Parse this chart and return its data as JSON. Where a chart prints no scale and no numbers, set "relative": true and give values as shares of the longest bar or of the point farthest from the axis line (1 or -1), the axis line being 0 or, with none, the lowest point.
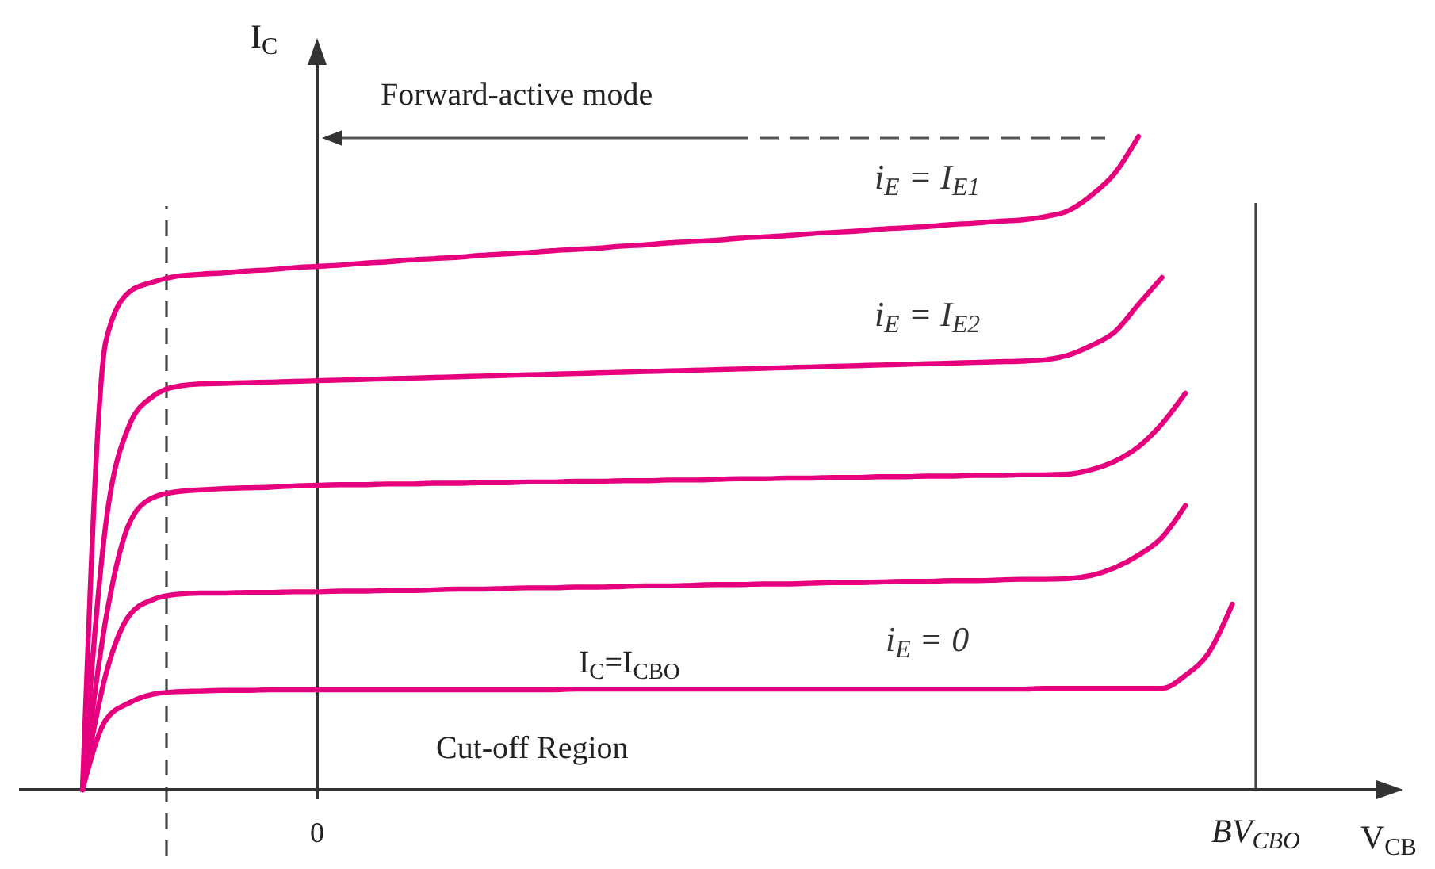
{
  "chart_data": {
    "type": "line",
    "relative": true,
    "xlabel": "V$_{CB}$",
    "ylabel": "I$_{C}$",
    "categories": [
      null,
      null,
      null,
      null,
      null,
      null,
      null,
      null,
      null,
      null,
      "0",
      null,
      null,
      null,
      null,
      null,
      null,
      null,
      null,
      null,
      null,
      null,
      null,
      null,
      null,
      null,
      null,
      null,
      null,
      null,
      null,
      null,
      null,
      null,
      null,
      null,
      null,
      null,
      null,
      null,
      null,
      null,
      null,
      null,
      null,
      null,
      null,
      null,
      null,
      null,
      "BV$_{CBO}$",
      null,
      null,
      null,
      null,
      null,
      null
    ],
    "legend": false,
    "grid": false,
    "marker": "none",
    "line_style": "solid",
    "ref_lines": [
      {
        "axis": "x",
        "value": "BV$_{CBO}$",
        "label": null,
        "line_style": "solid",
        "color": "#444444"
      }
    ],
    "annotations": [
      "Forward-active mode",
      "I$_{C}$=I$_{CBO}$",
      "Cut-off Region"
    ],
    "series": [
      {
        "name": "i$_{E}$ = I$_{E1}$",
        "color": "#e6007e",
        "values": [
          0,
          0.687,
          0.762,
          0.777,
          0.786,
          0.789,
          0.791,
          0.794,
          0.796,
          0.799,
          0.801,
          0.803,
          0.806,
          0.808,
          0.811,
          0.813,
          0.815,
          0.818,
          0.82,
          0.822,
          0.825,
          0.827,
          0.829,
          0.832,
          0.834,
          0.837,
          0.839,
          0.841,
          0.844,
          0.846,
          0.848,
          0.851,
          0.853,
          0.855,
          0.858,
          0.86,
          0.862,
          0.865,
          0.867,
          0.87,
          0.872,
          0.877,
          0.886,
          0.91,
          0.944,
          1,
          null,
          null,
          null,
          null,
          null,
          null,
          null,
          null,
          null,
          null,
          null
        ]
      },
      {
        "name": "i$_{E}$ = I$_{E2}$",
        "color": "#e6007e",
        "values": [
          0,
          0.408,
          0.558,
          0.602,
          0.617,
          0.621,
          0.622,
          0.623,
          0.624,
          0.625,
          0.626,
          0.627,
          0.628,
          0.629,
          0.63,
          0.631,
          0.632,
          0.633,
          0.634,
          0.635,
          0.636,
          0.637,
          0.638,
          0.639,
          0.64,
          0.641,
          0.642,
          0.643,
          0.644,
          0.645,
          0.646,
          0.647,
          0.648,
          0.649,
          0.65,
          0.651,
          0.652,
          0.653,
          0.654,
          0.655,
          0.656,
          0.658,
          0.665,
          0.68,
          0.701,
          0.743,
          0.784,
          null,
          null,
          null,
          null,
          null,
          null,
          null,
          null,
          null,
          null
        ]
      },
      {
        "color": "#e6007e",
        "values": [
          0,
          0.262,
          0.408,
          0.447,
          0.456,
          0.459,
          0.461,
          0.462,
          0.463,
          0.465,
          0.466,
          0.467,
          0.467,
          0.468,
          0.468,
          0.469,
          0.469,
          0.47,
          0.47,
          0.471,
          0.471,
          0.472,
          0.472,
          0.473,
          0.473,
          0.474,
          0.474,
          0.475,
          0.476,
          0.476,
          0.477,
          0.477,
          0.478,
          0.478,
          0.479,
          0.479,
          0.48,
          0.48,
          0.481,
          0.481,
          0.482,
          0.482,
          0.483,
          0.49,
          0.503,
          0.525,
          0.56,
          0.607,
          null,
          null,
          null,
          null,
          null,
          null,
          null,
          null,
          null
        ]
      },
      {
        "color": "#e6007e",
        "values": [
          0,
          0.177,
          0.267,
          0.291,
          0.299,
          0.301,
          0.301,
          0.302,
          0.302,
          0.303,
          0.303,
          0.304,
          0.304,
          0.305,
          0.305,
          0.306,
          0.307,
          0.307,
          0.308,
          0.309,
          0.309,
          0.31,
          0.31,
          0.311,
          0.312,
          0.312,
          0.313,
          0.314,
          0.314,
          0.315,
          0.315,
          0.316,
          0.317,
          0.317,
          0.318,
          0.319,
          0.319,
          0.32,
          0.32,
          0.321,
          0.322,
          0.322,
          0.323,
          0.328,
          0.34,
          0.359,
          0.386,
          0.435,
          null,
          null,
          null,
          null,
          null,
          null,
          null,
          null,
          null
        ]
      },
      {
        "name": "i$_{E}$ = 0",
        "color": "#e6007e",
        "values": [
          0,
          0.107,
          0.133,
          0.146,
          0.15,
          0.151,
          0.152,
          0.152,
          0.153,
          0.153,
          0.153,
          0.153,
          0.153,
          0.153,
          0.153,
          0.153,
          0.153,
          0.153,
          0.153,
          0.153,
          0.153,
          0.154,
          0.154,
          0.154,
          0.154,
          0.154,
          0.154,
          0.154,
          0.154,
          0.154,
          0.154,
          0.154,
          0.154,
          0.154,
          0.154,
          0.154,
          0.154,
          0.154,
          0.154,
          0.154,
          0.154,
          0.155,
          0.155,
          0.155,
          0.155,
          0.155,
          0.155,
          0.175,
          0.21,
          0.284,
          null,
          null,
          null,
          null,
          null,
          null,
          null
        ]
      }
    ]
  }
}
